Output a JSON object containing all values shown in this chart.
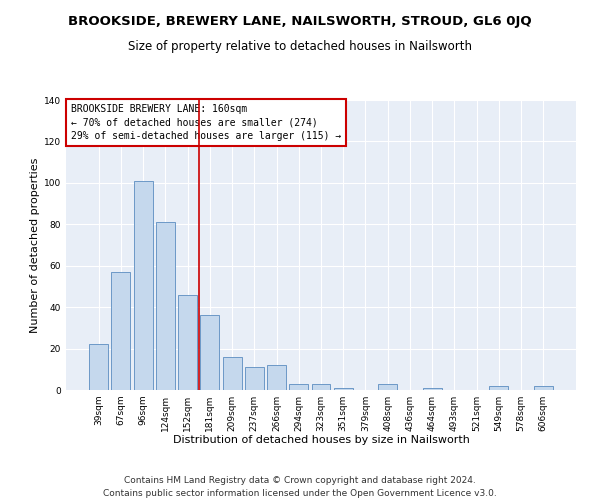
{
  "title": "BROOKSIDE, BREWERY LANE, NAILSWORTH, STROUD, GL6 0JQ",
  "subtitle": "Size of property relative to detached houses in Nailsworth",
  "xlabel": "Distribution of detached houses by size in Nailsworth",
  "ylabel": "Number of detached properties",
  "categories": [
    "39sqm",
    "67sqm",
    "96sqm",
    "124sqm",
    "152sqm",
    "181sqm",
    "209sqm",
    "237sqm",
    "266sqm",
    "294sqm",
    "323sqm",
    "351sqm",
    "379sqm",
    "408sqm",
    "436sqm",
    "464sqm",
    "493sqm",
    "521sqm",
    "549sqm",
    "578sqm",
    "606sqm"
  ],
  "values": [
    22,
    57,
    101,
    81,
    46,
    36,
    16,
    11,
    12,
    3,
    3,
    1,
    0,
    3,
    0,
    1,
    0,
    0,
    2,
    0,
    2
  ],
  "bar_color": "#c5d8ed",
  "bar_edge_color": "#5b8dc0",
  "background_color": "#e8eef7",
  "grid_color": "#ffffff",
  "ylim": [
    0,
    140
  ],
  "yticks": [
    0,
    20,
    40,
    60,
    80,
    100,
    120,
    140
  ],
  "vline_x": 4.5,
  "vline_color": "#cc0000",
  "annotation_title": "BROOKSIDE BREWERY LANE: 160sqm",
  "annotation_line2": "← 70% of detached houses are smaller (274)",
  "annotation_line3": "29% of semi-detached houses are larger (115) →",
  "annotation_box_color": "#cc0000",
  "footer_line1": "Contains HM Land Registry data © Crown copyright and database right 2024.",
  "footer_line2": "Contains public sector information licensed under the Open Government Licence v3.0.",
  "title_fontsize": 9.5,
  "subtitle_fontsize": 8.5,
  "xlabel_fontsize": 8,
  "ylabel_fontsize": 8,
  "tick_fontsize": 6.5,
  "annotation_fontsize": 7,
  "footer_fontsize": 6.5
}
